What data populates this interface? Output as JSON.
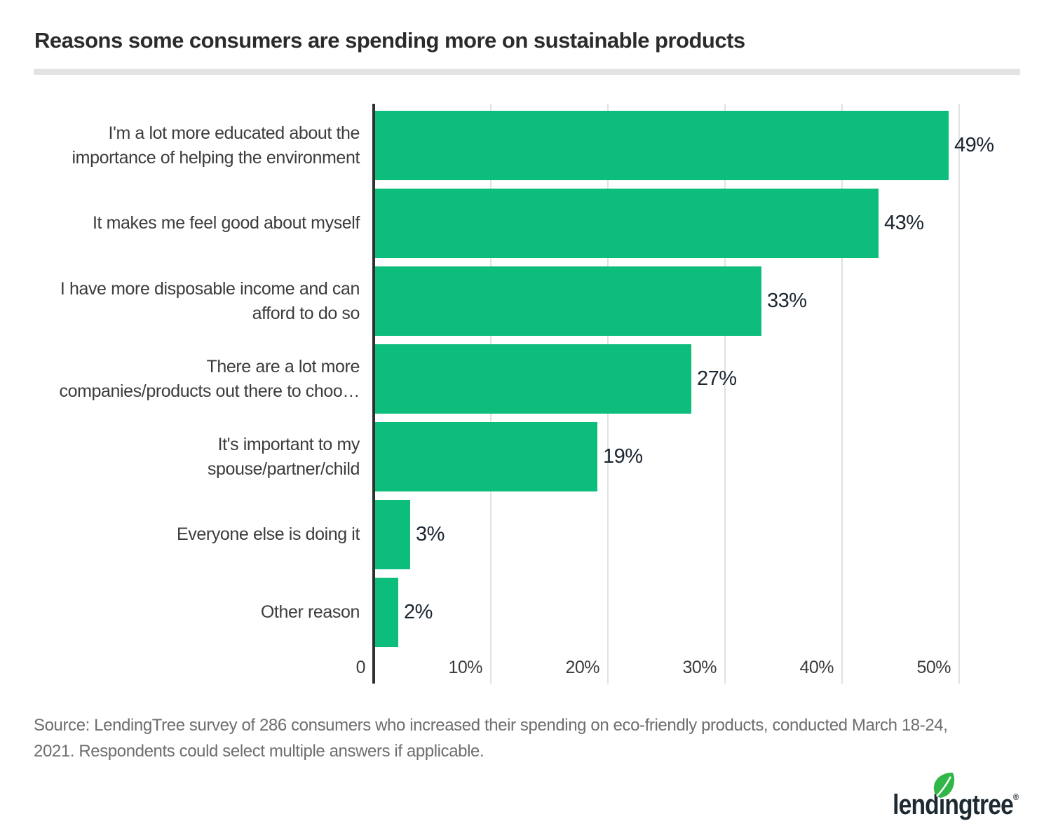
{
  "chart_data": {
    "type": "bar",
    "orientation": "horizontal",
    "title": "Reasons some consumers are spending more on sustainable products",
    "categories": [
      "I'm a lot more educated about the\nimportance of helping the environment",
      "It makes me feel good about myself",
      "I have more disposable income and can\nafford to do so",
      "There are a lot more\ncompanies/products out there to choo…",
      "It's important to my\nspouse/partner/child",
      "Everyone else is doing it",
      "Other reason"
    ],
    "values": [
      49,
      43,
      33,
      27,
      19,
      3,
      2
    ],
    "value_labels": [
      "49%",
      "43%",
      "33%",
      "27%",
      "19%",
      "3%",
      "2%"
    ],
    "x_ticks": [
      {
        "label": "0",
        "value": 0
      },
      {
        "label": "10%",
        "value": 10
      },
      {
        "label": "20%",
        "value": 20
      },
      {
        "label": "30%",
        "value": 30
      },
      {
        "label": "40%",
        "value": 40
      },
      {
        "label": "50%",
        "value": 50
      }
    ],
    "xlim": [
      0,
      55
    ],
    "grid": true,
    "legend": "none",
    "bar_color": "#0dbd7c"
  },
  "footer": {
    "source": "Source: LendingTree survey of 286 consumers who increased their spending on eco-friendly products, conducted March 18-24,\n2021. Respondents could select multiple answers if applicable.",
    "logo": {
      "wordmark": "lendıngtree",
      "reg": "®",
      "navy": "#1e2a32",
      "leaf_color": "#31b748"
    }
  },
  "colors": {
    "bar_green": "#0dbd7c",
    "axis_line": "#303030",
    "gridline": "#e1e1e1",
    "title_text": "#2b2b2b",
    "label_text": "#3c3c3c",
    "value_text": "#1b2631",
    "source_text": "#6e6e6e",
    "divider": "#e3e3e3",
    "background": "#ffffff"
  }
}
